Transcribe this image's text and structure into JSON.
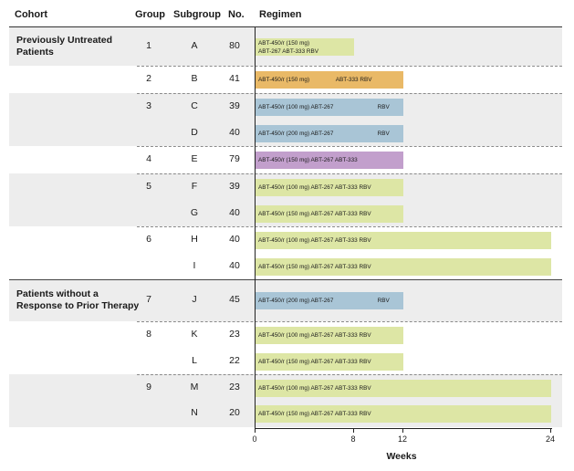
{
  "headers": {
    "cohort": "Cohort",
    "group": "Group",
    "subgroup": "Subgroup",
    "no": "No.",
    "regimen": "Regimen"
  },
  "colors": {
    "green": "#dde6a5",
    "orange": "#e9b967",
    "blue": "#a9c5d6",
    "purple": "#c29fcc",
    "band_gray": "#ededed"
  },
  "cohorts": [
    {
      "label_line1": "Previously Untreated",
      "label_line2": "Patients"
    },
    {
      "label_line1": "Patients without a",
      "label_line2": "Response to Prior Therapy"
    }
  ],
  "rows": [
    {
      "group": "1",
      "subgroup": "A",
      "no": "80",
      "weeks": 8,
      "color": "green",
      "segments": [
        {
          "t": "ABT-450/r (150 mg)",
          "w": 0
        },
        {
          "t": "ABT-267  ABT-333 RBV",
          "w": 0
        }
      ]
    },
    {
      "group": "2",
      "subgroup": "B",
      "no": "41",
      "weeks": 12,
      "color": "orange",
      "segments": [
        {
          "t": "ABT-450/r (150 mg)",
          "w": 0
        },
        {
          "t": "ABT-333 RBV",
          "w": 6.5
        }
      ]
    },
    {
      "group": "3",
      "subgroup": "C",
      "no": "39",
      "weeks": 12,
      "color": "blue",
      "segments": [
        {
          "t": "ABT-450/r (100 mg)  ABT-267",
          "w": 0
        },
        {
          "t": "RBV",
          "w": 9.9
        }
      ]
    },
    {
      "group": "",
      "subgroup": "D",
      "no": "40",
      "weeks": 12,
      "color": "blue",
      "segments": [
        {
          "t": "ABT-450/r (200 mg)  ABT-267",
          "w": 0
        },
        {
          "t": "RBV",
          "w": 9.9
        }
      ]
    },
    {
      "group": "4",
      "subgroup": "E",
      "no": "79",
      "weeks": 12,
      "color": "purple",
      "segments": [
        {
          "t": "ABT-450/r (150 mg)  ABT-267  ABT-333",
          "w": 0
        }
      ]
    },
    {
      "group": "5",
      "subgroup": "F",
      "no": "39",
      "weeks": 12,
      "color": "green",
      "segments": [
        {
          "t": "ABT-450/r (100 mg)  ABT-267  ABT-333  RBV",
          "w": 0
        }
      ]
    },
    {
      "group": "",
      "subgroup": "G",
      "no": "40",
      "weeks": 12,
      "color": "green",
      "segments": [
        {
          "t": "ABT-450/r (150 mg)  ABT-267  ABT-333  RBV",
          "w": 0
        }
      ]
    },
    {
      "group": "6",
      "subgroup": "H",
      "no": "40",
      "weeks": 24,
      "color": "green",
      "segments": [
        {
          "t": "ABT-450/r (100 mg)  ABT-267  ABT-333  RBV",
          "w": 0
        }
      ]
    },
    {
      "group": "",
      "subgroup": "I",
      "no": "40",
      "weeks": 24,
      "color": "green",
      "segments": [
        {
          "t": "ABT-450/r (150 mg)  ABT-267  ABT-333  RBV",
          "w": 0
        }
      ]
    },
    {
      "group": "7",
      "subgroup": "J",
      "no": "45",
      "weeks": 12,
      "color": "blue",
      "segments": [
        {
          "t": "ABT-450/r (200 mg)  ABT-267",
          "w": 0
        },
        {
          "t": "RBV",
          "w": 9.9
        }
      ]
    },
    {
      "group": "8",
      "subgroup": "K",
      "no": "23",
      "weeks": 12,
      "color": "green",
      "segments": [
        {
          "t": "ABT-450/r (100 mg)  ABT-267  ABT-333  RBV",
          "w": 0
        }
      ]
    },
    {
      "group": "",
      "subgroup": "L",
      "no": "22",
      "weeks": 12,
      "color": "green",
      "segments": [
        {
          "t": "ABT-450/r (150 mg)  ABT-267  ABT-333  RBV",
          "w": 0
        }
      ]
    },
    {
      "group": "9",
      "subgroup": "M",
      "no": "23",
      "weeks": 24,
      "color": "green",
      "segments": [
        {
          "t": "ABT-450/r (100 mg)  ABT-267  ABT-333  RBV",
          "w": 0
        }
      ]
    },
    {
      "group": "",
      "subgroup": "N",
      "no": "20",
      "weeks": 24,
      "color": "green",
      "segments": [
        {
          "t": "ABT-450/r (150 mg)  ABT-267  ABT-333  RBV",
          "w": 0
        }
      ]
    }
  ],
  "axis": {
    "ticks": [
      "0",
      "8",
      "12",
      "24"
    ],
    "label": "Weeks"
  }
}
